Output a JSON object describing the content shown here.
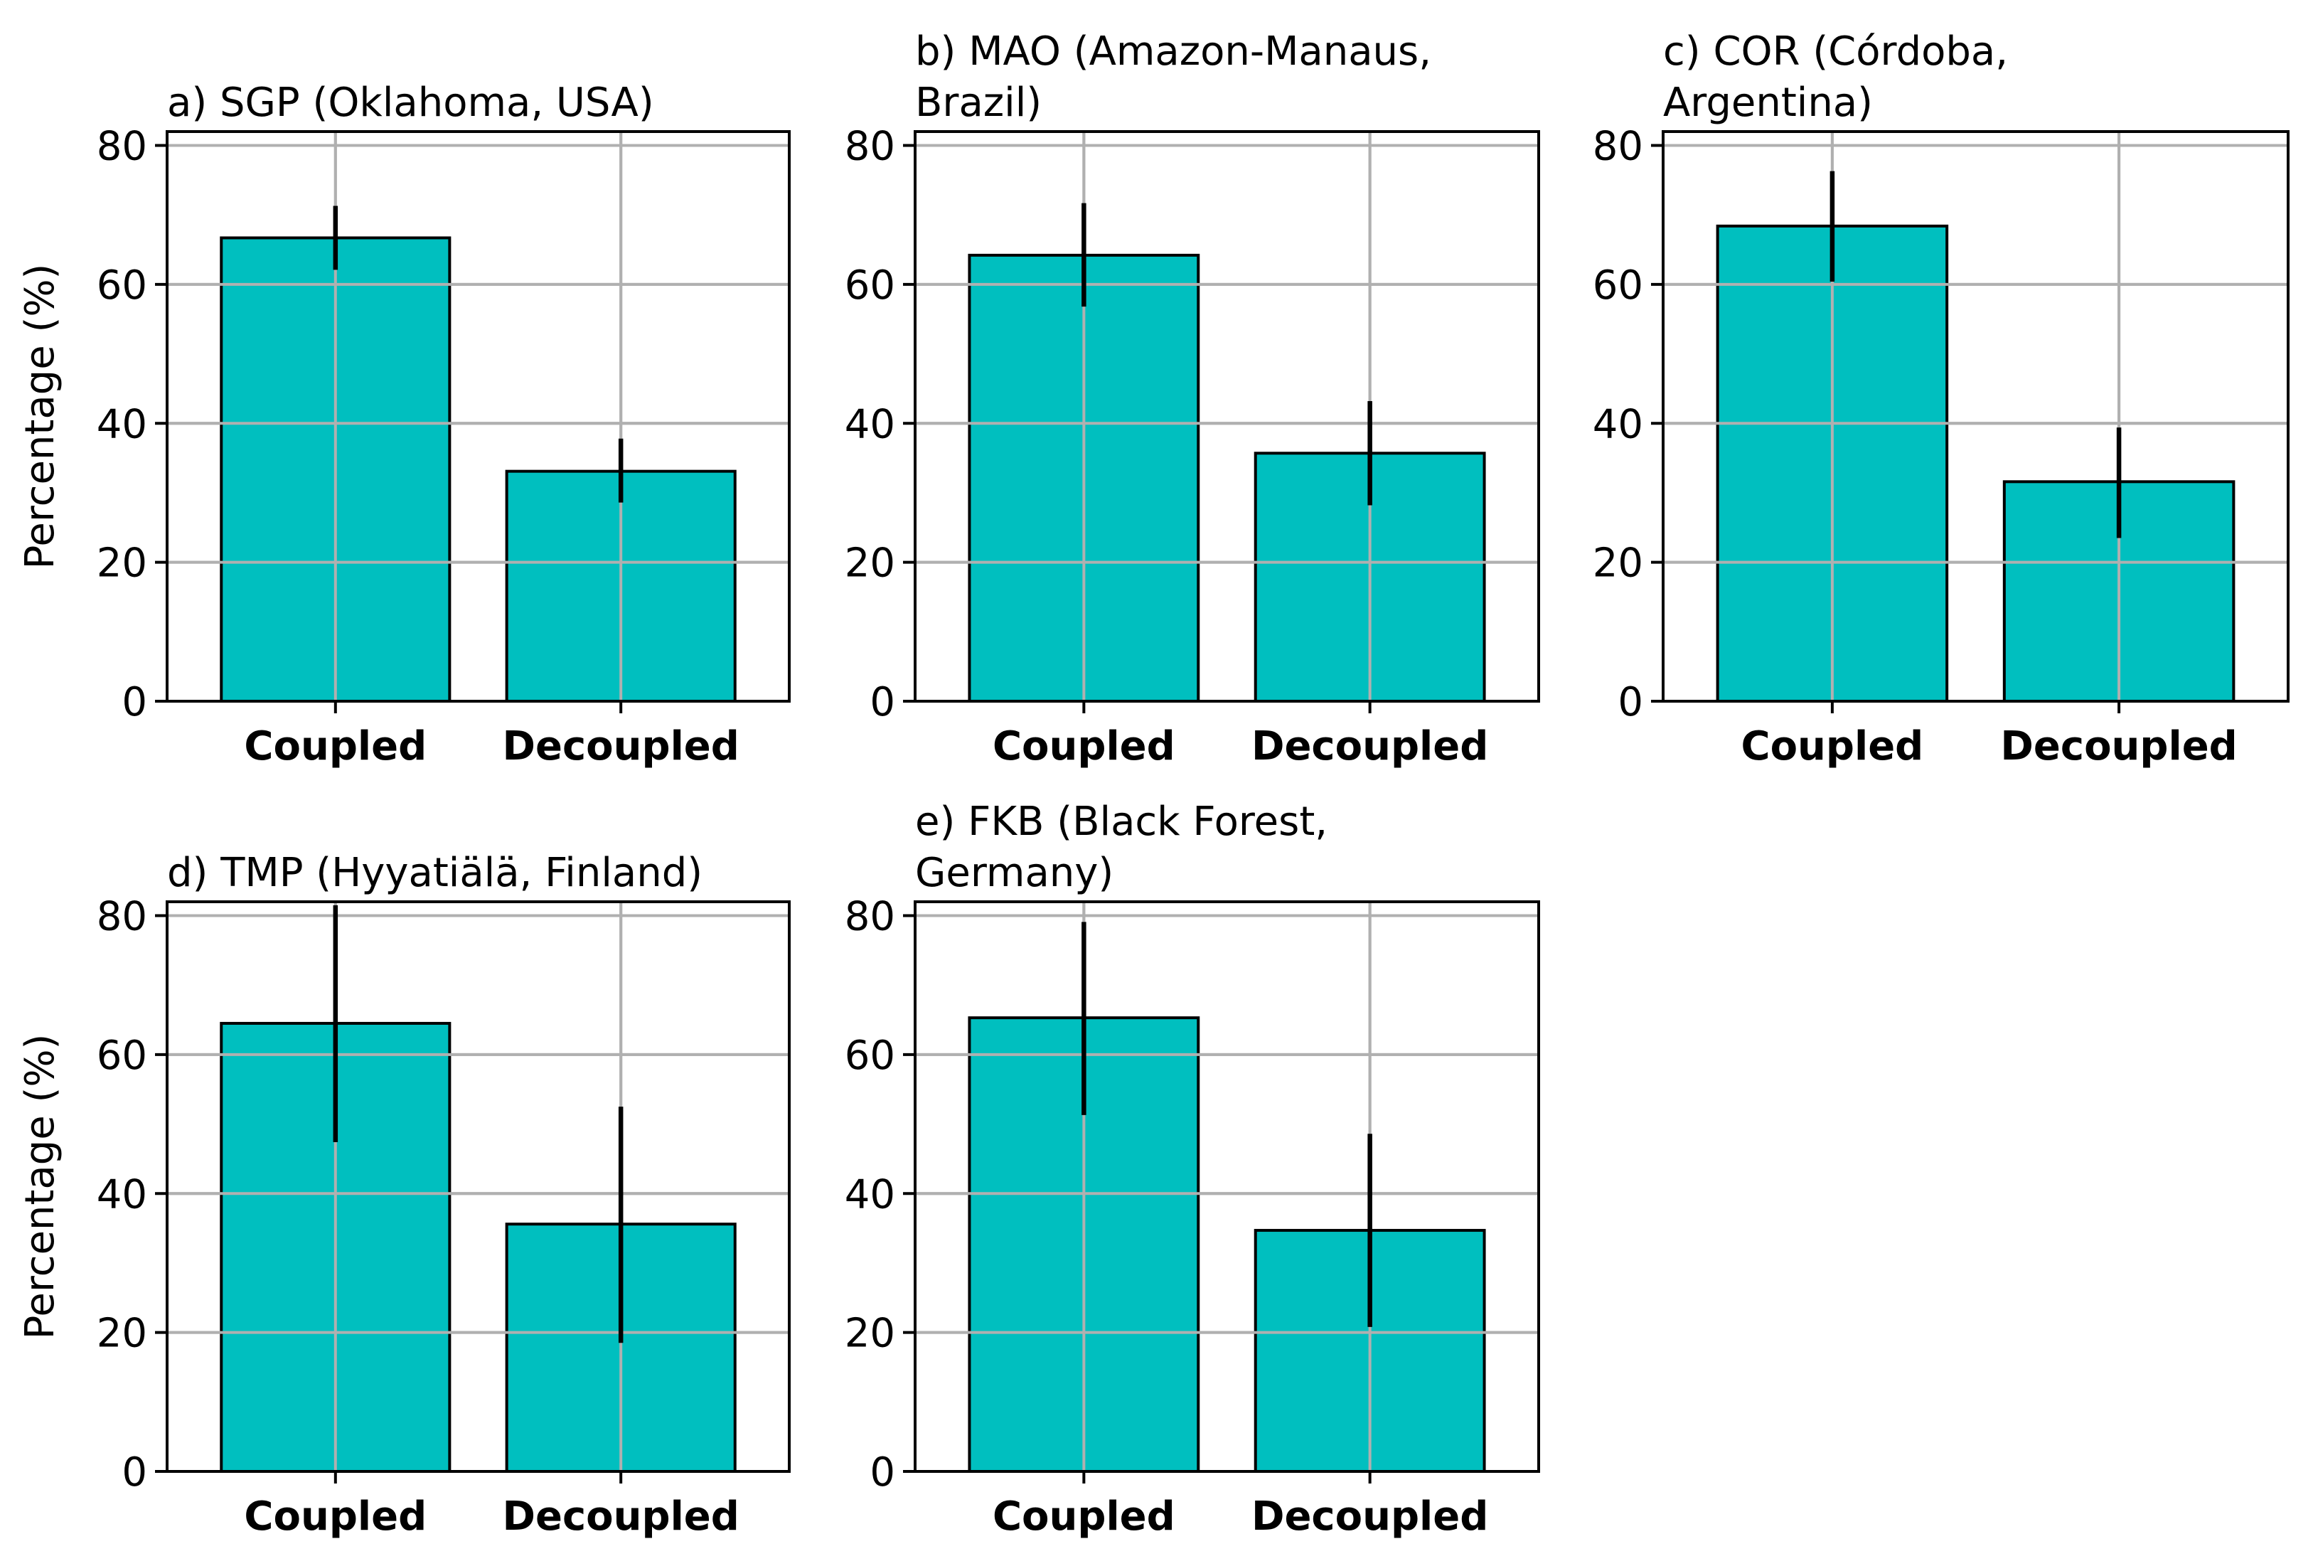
{
  "chart_data": [
    {
      "type": "bar",
      "panel": "a",
      "title_lines": [
        "a) SGP (Oklahoma, USA)"
      ],
      "categories": [
        "Coupled",
        "Decoupled"
      ],
      "values": [
        66.7,
        33.1
      ],
      "error_low": [
        62.1,
        28.6
      ],
      "error_high": [
        71.3,
        37.8
      ],
      "ylabel": "Percentage (%)",
      "ylim": [
        0,
        82
      ],
      "yticks": [
        0,
        20,
        40,
        60,
        80
      ],
      "grid": true,
      "bar_color": "#00bfbf"
    },
    {
      "type": "bar",
      "panel": "b",
      "title_lines": [
        "b) MAO (Amazon-Manaus,",
        "Brazil)"
      ],
      "categories": [
        "Coupled",
        "Decoupled"
      ],
      "values": [
        64.2,
        35.7
      ],
      "error_low": [
        56.8,
        28.2
      ],
      "error_high": [
        71.7,
        43.2
      ],
      "ylabel": "",
      "ylim": [
        0,
        82
      ],
      "yticks": [
        0,
        20,
        40,
        60,
        80
      ],
      "grid": true,
      "bar_color": "#00bfbf"
    },
    {
      "type": "bar",
      "panel": "c",
      "title_lines": [
        "c) COR (Córdoba,",
        "Argentina)"
      ],
      "categories": [
        "Coupled",
        "Decoupled"
      ],
      "values": [
        68.4,
        31.6
      ],
      "error_low": [
        60.4,
        23.5
      ],
      "error_high": [
        76.3,
        39.4
      ],
      "ylabel": "",
      "ylim": [
        0,
        82
      ],
      "yticks": [
        0,
        20,
        40,
        60,
        80
      ],
      "grid": true,
      "bar_color": "#00bfbf"
    },
    {
      "type": "bar",
      "panel": "d",
      "title_lines": [
        "d) TMP (Hyyatiälä, Finland)"
      ],
      "categories": [
        "Coupled",
        "Decoupled"
      ],
      "values": [
        64.5,
        35.6
      ],
      "error_low": [
        47.4,
        18.5
      ],
      "error_high": [
        81.5,
        52.5
      ],
      "ylabel": "Percentage (%)",
      "ylim": [
        0,
        82
      ],
      "yticks": [
        0,
        20,
        40,
        60,
        80
      ],
      "grid": true,
      "bar_color": "#00bfbf"
    },
    {
      "type": "bar",
      "panel": "e",
      "title_lines": [
        "e) FKB (Black Forest,",
        "Germany)"
      ],
      "categories": [
        "Coupled",
        "Decoupled"
      ],
      "values": [
        65.3,
        34.7
      ],
      "error_low": [
        51.3,
        20.8
      ],
      "error_high": [
        79.1,
        48.6
      ],
      "ylabel": "",
      "ylim": [
        0,
        82
      ],
      "yticks": [
        0,
        20,
        40,
        60,
        80
      ],
      "grid": true,
      "bar_color": "#00bfbf"
    }
  ]
}
